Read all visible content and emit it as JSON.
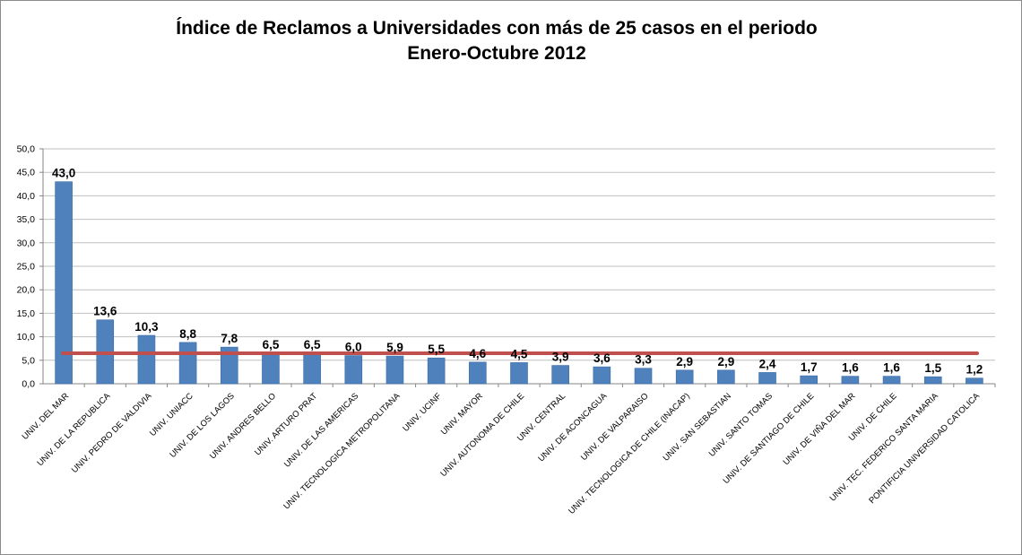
{
  "chart_data": {
    "type": "bar",
    "title_line1": "Índice de Reclamos a Universidades con más de 25 casos en el periodo",
    "title_line2": "Enero-Octubre 2012",
    "categories": [
      "UNIV. DEL MAR",
      "UNIV. DE LA REPUBLICA",
      "UNIV. PEDRO DE VALDIVIA",
      "UNIV. UNIACC",
      "UNIV.  DE LOS LAGOS",
      "UNIV. ANDRES BELLO",
      "UNIV.  ARTURO PRAT",
      "UNIV. DE LAS AMERICAS",
      "UNIV. TECNOLOGICA METROPOLITANA",
      "UNIV. UCINF",
      "UNIV. MAYOR",
      "UNIV. AUTONOMA DE CHILE",
      "UNIV. CENTRAL",
      "UNIV. DE ACONCAGUA",
      "UNIV. DE VALPARAISO",
      "UNIV. TECNOLOGICA DE CHILE (INACAP)",
      "UNIV. SAN SEBASTIAN",
      "UNIV. SANTO TOMAS",
      "UNIV. DE SANTIAGO DE CHILE",
      "UNIV. DE VIÑA DEL MAR",
      "UNIV. DE CHILE",
      "UNIV. TEC.  FEDERICO SANTA MARIA",
      "PONTIFICIA UNIVERSIDAD CATOLICA"
    ],
    "values": [
      43.0,
      13.6,
      10.3,
      8.8,
      7.8,
      6.5,
      6.5,
      6.0,
      5.9,
      5.5,
      4.6,
      4.5,
      3.9,
      3.6,
      3.3,
      2.9,
      2.9,
      2.4,
      1.7,
      1.6,
      1.6,
      1.5,
      1.2
    ],
    "value_labels": [
      "43,0",
      "13,6",
      "10,3",
      "8,8",
      "7,8",
      "6,5",
      "6,5",
      "6,0",
      "5,9",
      "5,5",
      "4,6",
      "4,5",
      "3,9",
      "3,6",
      "3,3",
      "2,9",
      "2,9",
      "2,4",
      "1,7",
      "1,6",
      "1,6",
      "1,5",
      "1,2"
    ],
    "yticks": [
      "0,0",
      "5,0",
      "10,0",
      "15,0",
      "20,0",
      "25,0",
      "30,0",
      "35,0",
      "40,0",
      "45,0",
      "50,0"
    ],
    "ylim": [
      0,
      50
    ],
    "reference_line": 6.5,
    "grid": true,
    "legend": "none",
    "xlabel": "",
    "ylabel": "",
    "colors": {
      "bar": "#4f81bd",
      "bar_edge": "#3a6ca6",
      "reference_line": "#c0504d",
      "grid": "#bfbfbf",
      "axis": "#868686"
    }
  }
}
